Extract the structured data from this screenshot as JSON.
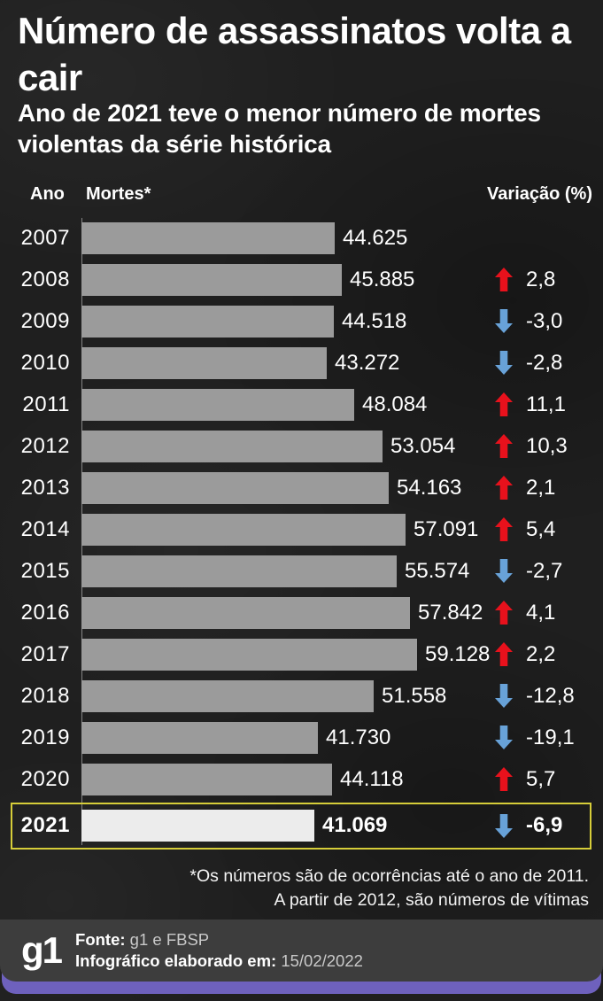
{
  "title": "Número de assassinatos volta a cair",
  "subtitle": "Ano de 2021 teve o menor número de mortes violentas da série histórica",
  "table_headers": {
    "year": "Ano",
    "deaths": "Mortes*",
    "variation": "Variação (%)"
  },
  "chart_data": {
    "type": "bar",
    "orientation": "horizontal",
    "title": "Número de assassinatos volta a cair",
    "categories": [
      "2007",
      "2008",
      "2009",
      "2010",
      "2011",
      "2012",
      "2013",
      "2014",
      "2015",
      "2016",
      "2017",
      "2018",
      "2019",
      "2020",
      "2021"
    ],
    "values": [
      44625,
      45885,
      44518,
      43272,
      48084,
      53054,
      54163,
      57091,
      55574,
      57842,
      59128,
      51558,
      41730,
      44118,
      41069
    ],
    "value_labels": [
      "44.625",
      "45.885",
      "44.518",
      "43.272",
      "48.084",
      "53.054",
      "54.163",
      "57.091",
      "55.574",
      "57.842",
      "59.128",
      "51.558",
      "41.730",
      "44.118",
      "41.069"
    ],
    "variation_pct": [
      null,
      2.8,
      -3.0,
      -2.8,
      11.1,
      10.3,
      2.1,
      5.4,
      -2.7,
      4.1,
      2.2,
      -12.8,
      -19.1,
      5.7,
      -6.9
    ],
    "variation_labels": [
      "",
      "2,8",
      "-3,0",
      "-2,8",
      "11,1",
      "10,3",
      "2,1",
      "5,4",
      "-2,7",
      "4,1",
      "2,2",
      "-12,8",
      "-19,1",
      "5,7",
      "-6,9"
    ],
    "xlim": [
      0,
      59128
    ],
    "highlight_category": "2021",
    "legend": false,
    "grid": false
  },
  "footnote": {
    "line1": "*Os números são de ocorrências até o ano de 2011.",
    "line2": "A partir de 2012, são números de vítimas"
  },
  "footer": {
    "logo": "g1",
    "source_label": "Fonte:",
    "source_value": "g1 e FBSP",
    "elaborated_label": "Infográfico elaborado em:",
    "elaborated_value": "15/02/2022"
  },
  "colors": {
    "background": "#1f1f1f",
    "bar": "#9b9b9b",
    "highlight_bar": "#ececec",
    "highlight_border": "#d6cd39",
    "arrow_up": "#e8111c",
    "arrow_down": "#68a2d8",
    "footer_bg": "#3d3d3d",
    "footer_accent": "#6e61bd",
    "text": "#ffffff"
  }
}
